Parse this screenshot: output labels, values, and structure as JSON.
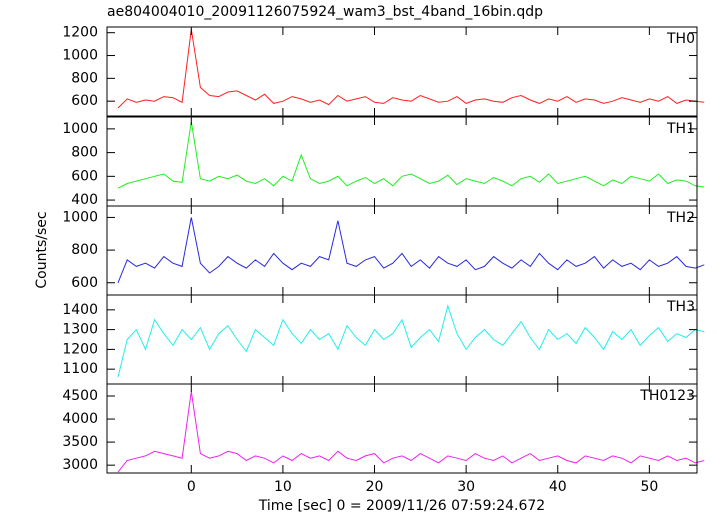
{
  "title": "ae804004010_20091126075924_wam3_bst_4band_16bin.qdp",
  "xlabel": "Time [sec] 0 = 2009/11/26 07:59:24.672",
  "ylabel": "Counts/sec",
  "chart_data": [
    {
      "type": "line",
      "label": "TH0",
      "color": "#ff2020",
      "x": [
        -8,
        -7,
        -6,
        -5,
        -4,
        -3,
        -2,
        -1,
        0,
        1,
        2,
        3,
        4,
        5,
        6,
        7,
        8,
        9,
        10,
        11,
        12,
        13,
        14,
        15,
        16,
        17,
        18,
        19,
        20,
        21,
        22,
        23,
        24,
        25,
        26,
        27,
        28,
        29,
        30,
        31,
        32,
        33,
        34,
        35,
        36,
        37,
        38,
        39,
        40,
        41,
        42,
        43,
        44,
        45,
        46,
        47,
        48,
        49,
        50,
        51,
        52,
        53,
        54,
        55,
        56
      ],
      "values": [
        540,
        620,
        590,
        610,
        600,
        640,
        630,
        590,
        1230,
        720,
        650,
        640,
        680,
        690,
        650,
        610,
        660,
        580,
        600,
        640,
        620,
        590,
        610,
        570,
        650,
        600,
        620,
        640,
        590,
        580,
        630,
        610,
        600,
        650,
        620,
        590,
        600,
        640,
        580,
        610,
        620,
        600,
        590,
        630,
        650,
        610,
        580,
        620,
        600,
        640,
        590,
        620,
        610,
        580,
        600,
        630,
        610,
        590,
        620,
        600,
        640,
        580,
        610,
        600,
        590
      ],
      "xlim": [
        -9.2,
        55.2
      ],
      "xticks": [
        0,
        10,
        20,
        30,
        40,
        50
      ],
      "ylim": [
        470,
        1250
      ],
      "yticks": [
        600,
        800,
        1000,
        1200
      ]
    },
    {
      "type": "line",
      "label": "TH1",
      "color": "#22ee22",
      "x": [
        -8,
        -7,
        -6,
        -5,
        -4,
        -3,
        -2,
        -1,
        0,
        1,
        2,
        3,
        4,
        5,
        6,
        7,
        8,
        9,
        10,
        11,
        12,
        13,
        14,
        15,
        16,
        17,
        18,
        19,
        20,
        21,
        22,
        23,
        24,
        25,
        26,
        27,
        28,
        29,
        30,
        31,
        32,
        33,
        34,
        35,
        36,
        37,
        38,
        39,
        40,
        41,
        42,
        43,
        44,
        45,
        46,
        47,
        48,
        49,
        50,
        51,
        52,
        53,
        54,
        55,
        56
      ],
      "values": [
        500,
        540,
        560,
        580,
        600,
        620,
        560,
        550,
        1060,
        580,
        560,
        600,
        580,
        610,
        560,
        540,
        580,
        520,
        600,
        560,
        780,
        580,
        540,
        560,
        600,
        520,
        560,
        590,
        540,
        580,
        520,
        600,
        620,
        580,
        540,
        560,
        610,
        530,
        580,
        560,
        540,
        590,
        560,
        520,
        580,
        600,
        550,
        620,
        540,
        560,
        580,
        600,
        560,
        520,
        570,
        540,
        600,
        580,
        560,
        620,
        540,
        570,
        560,
        520,
        510
      ],
      "xlim": [
        -9.2,
        55.2
      ],
      "xticks": [
        0,
        10,
        20,
        30,
        40,
        50
      ],
      "ylim": [
        350,
        1100
      ],
      "yticks": [
        400,
        600,
        800,
        1000
      ]
    },
    {
      "type": "line",
      "label": "TH2",
      "color": "#2a2ae0",
      "x": [
        -8,
        -7,
        -6,
        -5,
        -4,
        -3,
        -2,
        -1,
        0,
        1,
        2,
        3,
        4,
        5,
        6,
        7,
        8,
        9,
        10,
        11,
        12,
        13,
        14,
        15,
        16,
        17,
        18,
        19,
        20,
        21,
        22,
        23,
        24,
        25,
        26,
        27,
        28,
        29,
        30,
        31,
        32,
        33,
        34,
        35,
        36,
        37,
        38,
        39,
        40,
        41,
        42,
        43,
        44,
        45,
        46,
        47,
        48,
        49,
        50,
        51,
        52,
        53,
        54,
        55,
        56
      ],
      "values": [
        600,
        740,
        700,
        720,
        690,
        760,
        720,
        700,
        1000,
        720,
        660,
        700,
        760,
        720,
        690,
        740,
        700,
        780,
        720,
        680,
        720,
        700,
        760,
        740,
        980,
        720,
        700,
        740,
        760,
        690,
        720,
        780,
        700,
        740,
        690,
        760,
        720,
        700,
        740,
        680,
        700,
        760,
        720,
        690,
        740,
        700,
        780,
        720,
        680,
        740,
        700,
        720,
        760,
        690,
        740,
        700,
        720,
        680,
        740,
        700,
        720,
        760,
        700,
        690,
        710
      ],
      "xlim": [
        -9.2,
        55.2
      ],
      "xticks": [
        0,
        10,
        20,
        30,
        40,
        50
      ],
      "ylim": [
        525,
        1070
      ],
      "yticks": [
        600,
        800,
        1000
      ]
    },
    {
      "type": "line",
      "label": "TH3",
      "color": "#22eeee",
      "x": [
        -8,
        -7,
        -6,
        -5,
        -4,
        -3,
        -2,
        -1,
        0,
        1,
        2,
        3,
        4,
        5,
        6,
        7,
        8,
        9,
        10,
        11,
        12,
        13,
        14,
        15,
        16,
        17,
        18,
        19,
        20,
        21,
        22,
        23,
        24,
        25,
        26,
        27,
        28,
        29,
        30,
        31,
        32,
        33,
        34,
        35,
        36,
        37,
        38,
        39,
        40,
        41,
        42,
        43,
        44,
        45,
        46,
        47,
        48,
        49,
        50,
        51,
        52,
        53,
        54,
        55,
        56
      ],
      "values": [
        1060,
        1250,
        1300,
        1200,
        1350,
        1280,
        1220,
        1300,
        1250,
        1310,
        1200,
        1280,
        1320,
        1250,
        1190,
        1300,
        1260,
        1220,
        1350,
        1280,
        1230,
        1300,
        1250,
        1280,
        1200,
        1320,
        1260,
        1220,
        1300,
        1250,
        1280,
        1350,
        1210,
        1260,
        1300,
        1240,
        1420,
        1280,
        1200,
        1260,
        1300,
        1250,
        1220,
        1280,
        1340,
        1260,
        1200,
        1300,
        1250,
        1280,
        1230,
        1310,
        1260,
        1200,
        1290,
        1250,
        1300,
        1220,
        1270,
        1310,
        1240,
        1280,
        1260,
        1300,
        1290
      ],
      "xlim": [
        -9.2,
        55.2
      ],
      "xticks": [
        0,
        10,
        20,
        30,
        40,
        50
      ],
      "ylim": [
        1025,
        1475
      ],
      "yticks": [
        1100,
        1200,
        1300,
        1400
      ]
    },
    {
      "type": "line",
      "label": "TH0123",
      "color": "#ee22ee",
      "x": [
        -8,
        -7,
        -6,
        -5,
        -4,
        -3,
        -2,
        -1,
        0,
        1,
        2,
        3,
        4,
        5,
        6,
        7,
        8,
        9,
        10,
        11,
        12,
        13,
        14,
        15,
        16,
        17,
        18,
        19,
        20,
        21,
        22,
        23,
        24,
        25,
        26,
        27,
        28,
        29,
        30,
        31,
        32,
        33,
        34,
        35,
        36,
        37,
        38,
        39,
        40,
        41,
        42,
        43,
        44,
        45,
        46,
        47,
        48,
        49,
        50,
        51,
        52,
        53,
        54,
        55,
        56
      ],
      "values": [
        2850,
        3100,
        3150,
        3200,
        3300,
        3250,
        3200,
        3150,
        4600,
        3250,
        3150,
        3200,
        3300,
        3250,
        3100,
        3200,
        3150,
        3050,
        3200,
        3100,
        3250,
        3150,
        3200,
        3100,
        3300,
        3150,
        3100,
        3200,
        3250,
        3050,
        3150,
        3200,
        3100,
        3250,
        3150,
        3050,
        3200,
        3150,
        3100,
        3250,
        3150,
        3100,
        3200,
        3050,
        3150,
        3250,
        3100,
        3150,
        3200,
        3100,
        3050,
        3200,
        3150,
        3100,
        3200,
        3150,
        3050,
        3200,
        3150,
        3100,
        3200,
        3100,
        3150,
        3050,
        3100
      ],
      "xlim": [
        -9.2,
        55.2
      ],
      "xticks": [
        0,
        10,
        20,
        30,
        40,
        50
      ],
      "ylim": [
        2830,
        4760
      ],
      "yticks": [
        3000,
        3500,
        4000,
        4500
      ]
    }
  ]
}
